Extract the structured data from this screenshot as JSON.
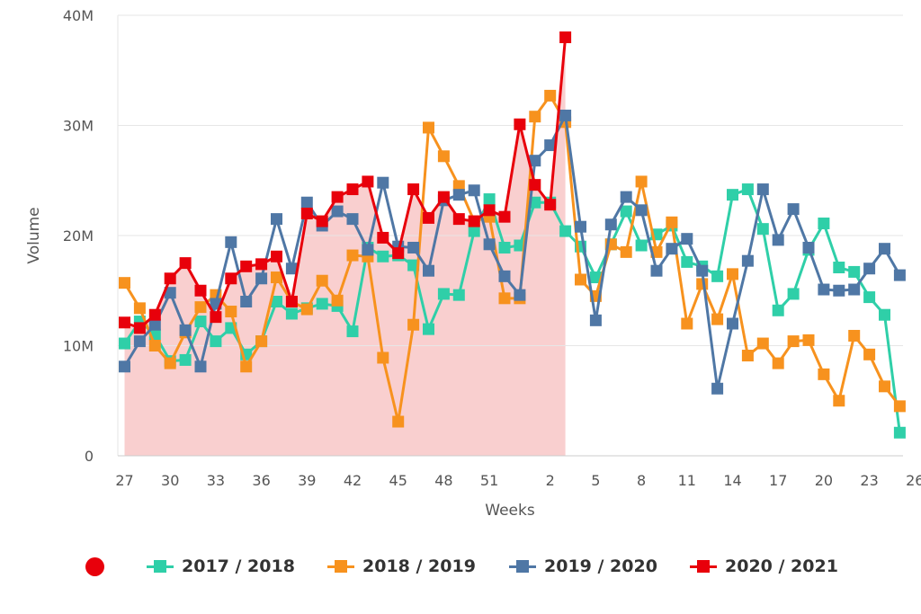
{
  "chart_data": {
    "type": "line",
    "title": "",
    "xlabel": "Weeks",
    "ylabel": "Volume",
    "ylim": [
      0,
      40000000
    ],
    "y_ticks": [
      {
        "value": 0,
        "label": "0"
      },
      {
        "value": 10000000,
        "label": "10M"
      },
      {
        "value": 20000000,
        "label": "20M"
      },
      {
        "value": 30000000,
        "label": "30M"
      },
      {
        "value": 40000000,
        "label": "40M"
      }
    ],
    "x_weeks": [
      27,
      28,
      29,
      30,
      31,
      32,
      33,
      34,
      35,
      36,
      37,
      38,
      39,
      40,
      41,
      42,
      43,
      44,
      45,
      46,
      47,
      48,
      49,
      50,
      51,
      52,
      53,
      1,
      2,
      3,
      4,
      5,
      6,
      7,
      8,
      9,
      10,
      11,
      12,
      13,
      14,
      15,
      16,
      17,
      18,
      19,
      20,
      21,
      22,
      23,
      24,
      25,
      26
    ],
    "x_tick_labels": [
      "27",
      "30",
      "33",
      "36",
      "39",
      "42",
      "45",
      "48",
      "51",
      "2",
      "5",
      "8",
      "11",
      "14",
      "17",
      "20",
      "23",
      "26"
    ],
    "x_tick_indices": [
      0,
      3,
      6,
      9,
      12,
      15,
      18,
      21,
      24,
      28,
      31,
      34,
      37,
      40,
      43,
      46,
      49,
      52
    ],
    "grid": "horizontal",
    "legend_position": "bottom",
    "highlight_series": "2020 / 2021",
    "series": [
      {
        "name": "2017 / 2018",
        "color": "#2fcfa8",
        "values": [
          10.2,
          12.2,
          11.0,
          8.6,
          8.7,
          12.2,
          10.4,
          11.6,
          9.2,
          10.4,
          14.0,
          12.9,
          13.4,
          13.8,
          13.6,
          11.3,
          18.9,
          18.1,
          18.2,
          17.3,
          11.5,
          14.7,
          14.6,
          20.4,
          23.3,
          18.9,
          19.1,
          23.0,
          23.0,
          20.4,
          19.0,
          16.2,
          19.2,
          22.2,
          19.1,
          20.1,
          20.9,
          17.6,
          17.2,
          16.3,
          23.7,
          24.2,
          20.6,
          13.2,
          14.7,
          18.7,
          21.1,
          17.1,
          16.7,
          14.4,
          12.8,
          2.1
        ]
      },
      {
        "name": "2018 / 2019",
        "color": "#f7921e",
        "values": [
          15.7,
          13.4,
          10.0,
          8.4,
          11.2,
          13.5,
          14.6,
          13.1,
          8.1,
          10.4,
          16.2,
          14.0,
          13.3,
          15.9,
          14.1,
          18.2,
          18.1,
          8.9,
          3.1,
          11.9,
          29.8,
          27.2,
          24.5,
          21.3,
          21.7,
          14.3,
          14.3,
          30.8,
          32.7,
          30.3,
          16.0,
          14.5,
          19.2,
          18.5,
          24.9,
          18.5,
          21.2,
          12.0,
          15.6,
          12.4,
          16.5,
          9.1,
          10.2,
          8.4,
          10.4,
          10.5,
          7.4,
          5.0,
          10.9,
          9.2,
          6.3,
          4.5
        ]
      },
      {
        "name": "2019 / 2020",
        "color": "#4f77a5",
        "values": [
          8.1,
          10.4,
          11.9,
          14.8,
          11.4,
          8.1,
          13.8,
          19.4,
          14.0,
          16.1,
          21.5,
          17.0,
          23.0,
          20.9,
          22.2,
          21.5,
          18.7,
          24.8,
          19.0,
          18.9,
          16.8,
          23.2,
          23.7,
          24.1,
          19.2,
          16.3,
          14.6,
          26.8,
          28.2,
          30.9,
          20.8,
          12.3,
          21.0,
          23.5,
          22.3,
          16.8,
          18.8,
          19.7,
          16.8,
          6.1,
          12.0,
          17.7,
          24.2,
          19.6,
          22.4,
          18.9,
          15.1,
          15.0,
          15.1,
          17.0,
          18.8,
          16.4
        ]
      },
      {
        "name": "2020 / 2021",
        "color": "#e8000b",
        "values": [
          12.1,
          11.6,
          12.8,
          16.1,
          17.5,
          15.0,
          12.6,
          16.1,
          17.2,
          17.4,
          18.1,
          14.0,
          22.0,
          21.3,
          23.5,
          24.2,
          24.9,
          19.8,
          18.4,
          24.2,
          21.6,
          23.5,
          21.5,
          21.3,
          22.3,
          21.7,
          30.1,
          24.6,
          22.8,
          38.0
        ]
      }
    ]
  }
}
